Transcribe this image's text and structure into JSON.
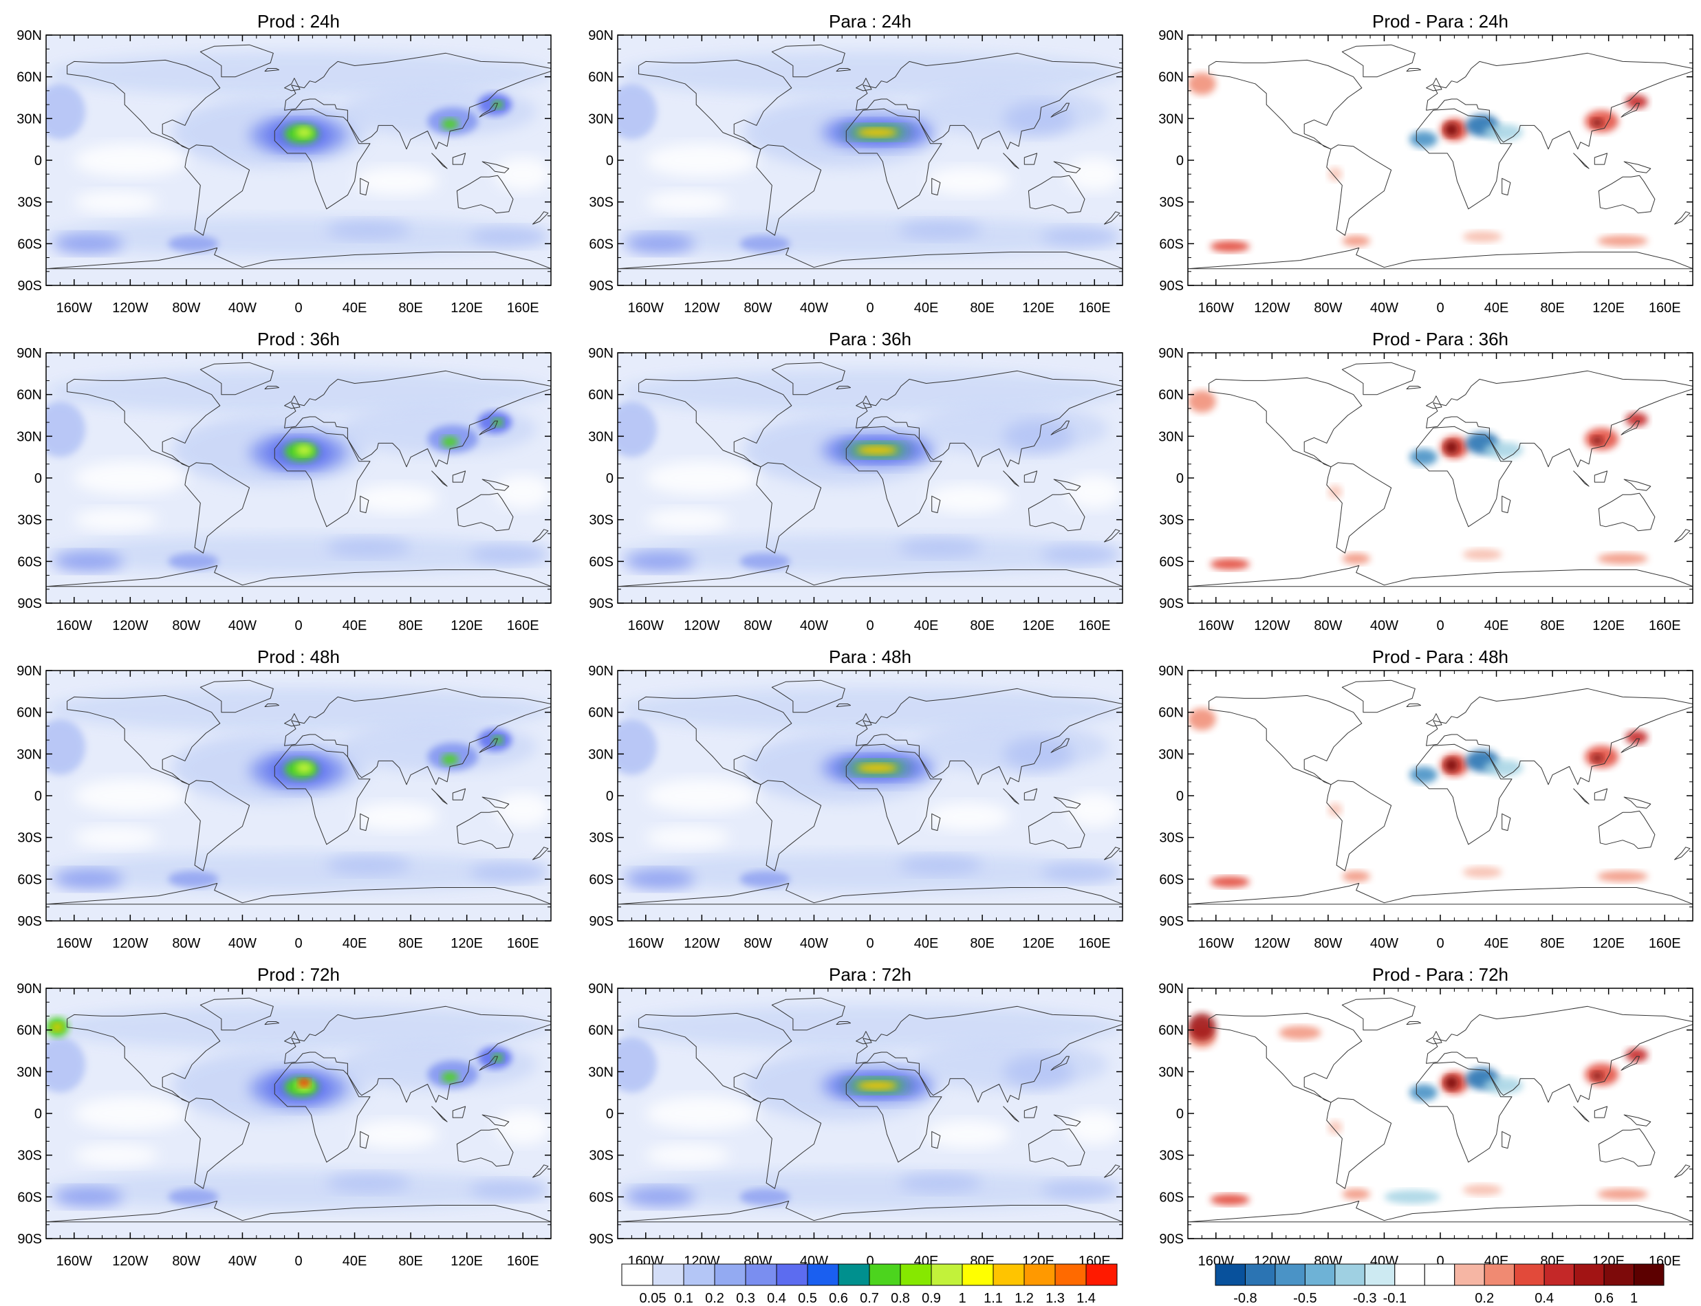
{
  "panels": [
    {
      "title": "Prod : 24h",
      "kind": "prod"
    },
    {
      "title": "Para : 24h",
      "kind": "para"
    },
    {
      "title": "Prod - Para : 24h",
      "kind": "diff"
    },
    {
      "title": "Prod : 36h",
      "kind": "prod"
    },
    {
      "title": "Para : 36h",
      "kind": "para"
    },
    {
      "title": "Prod - Para : 36h",
      "kind": "diff"
    },
    {
      "title": "Prod : 48h",
      "kind": "prod"
    },
    {
      "title": "Para : 48h",
      "kind": "para"
    },
    {
      "title": "Prod - Para : 48h",
      "kind": "diff"
    },
    {
      "title": "Prod : 72h",
      "kind": "prod"
    },
    {
      "title": "Para : 72h",
      "kind": "para"
    },
    {
      "title": "Prod - Para : 72h",
      "kind": "diff"
    }
  ],
  "axes": {
    "lat_labels": [
      "90N",
      "60N",
      "30N",
      "0",
      "30S",
      "60S",
      "90S"
    ],
    "lat_values": [
      90,
      60,
      30,
      0,
      -30,
      -60,
      -90
    ],
    "lon_labels": [
      "160W",
      "120W",
      "80W",
      "40W",
      "0",
      "40E",
      "80E",
      "120E",
      "160E"
    ],
    "lon_values": [
      -160,
      -120,
      -80,
      -40,
      0,
      40,
      80,
      120,
      160
    ],
    "lon_range": [
      -180,
      180
    ],
    "lat_range": [
      -90,
      90
    ]
  },
  "colorbars": {
    "field": {
      "labels": [
        "0.05",
        "0.1",
        "0.2",
        "0.3",
        "0.4",
        "0.5",
        "0.6",
        "0.7",
        "0.8",
        "0.9",
        "1",
        "1.1",
        "1.2",
        "1.3",
        "1.4"
      ],
      "colors": [
        "#ffffff",
        "#d4def8",
        "#b4c6f6",
        "#93aaf2",
        "#7a8ef0",
        "#5c6cf0",
        "#1a5ff0",
        "#00908e",
        "#4cd41e",
        "#86e800",
        "#c2f23a",
        "#ffff00",
        "#ffc400",
        "#ff9900",
        "#ff6a00",
        "#ff1a00"
      ]
    },
    "diff": {
      "labels": [
        "-0.8",
        "-0.5",
        "-0.3",
        "-0.1",
        "0.2",
        "0.4",
        "0.6",
        "1"
      ],
      "colors": [
        "#08519c",
        "#2b74b3",
        "#4a93c6",
        "#6eb2d6",
        "#9fd0e2",
        "#cdeaf2",
        "#ffffff",
        "#ffffff",
        "#f6b6a4",
        "#f08a72",
        "#e24a3a",
        "#c42828",
        "#a21414",
        "#7d0a0a",
        "#5c0000"
      ]
    }
  }
}
